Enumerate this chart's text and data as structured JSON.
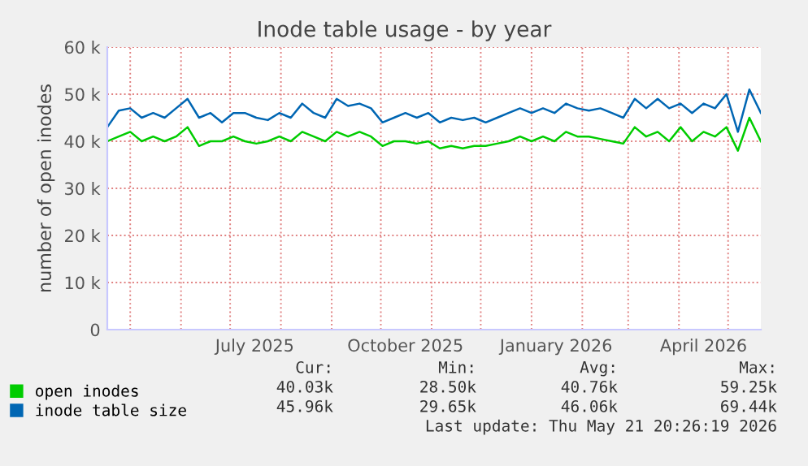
{
  "chart_data": {
    "type": "line",
    "title": "Inode table usage - by year",
    "ylabel": "number of open inodes",
    "x": [
      "2025-04-17",
      "2025-04-24",
      "2025-05-01",
      "2025-05-08",
      "2025-05-15",
      "2025-05-22",
      "2025-05-29",
      "2025-06-05",
      "2025-06-12",
      "2025-06-19",
      "2025-06-26",
      "2025-07-03",
      "2025-07-10",
      "2025-07-17",
      "2025-07-24",
      "2025-07-31",
      "2025-08-07",
      "2025-08-14",
      "2025-08-21",
      "2025-08-28",
      "2025-09-04",
      "2025-09-11",
      "2025-09-18",
      "2025-09-25",
      "2025-10-02",
      "2025-10-09",
      "2025-10-16",
      "2025-10-23",
      "2025-10-30",
      "2025-11-06",
      "2025-11-13",
      "2025-11-20",
      "2025-11-27",
      "2025-12-04",
      "2025-12-11",
      "2025-12-18",
      "2025-12-25",
      "2026-01-01",
      "2026-01-08",
      "2026-01-15",
      "2026-01-22",
      "2026-01-29",
      "2026-02-05",
      "2026-02-12",
      "2026-02-19",
      "2026-02-26",
      "2026-03-05",
      "2026-03-12",
      "2026-03-19",
      "2026-03-26",
      "2026-04-02",
      "2026-04-09",
      "2026-04-16",
      "2026-04-23",
      "2026-04-30",
      "2026-05-07",
      "2026-05-14",
      "2026-05-21"
    ],
    "series": [
      {
        "name": "open inodes",
        "color": "#00cc00",
        "values": [
          40000,
          41000,
          42000,
          40000,
          41000,
          40000,
          41000,
          43000,
          39000,
          40000,
          40000,
          41000,
          40000,
          39500,
          40000,
          41000,
          40000,
          42000,
          41000,
          40000,
          42000,
          41000,
          42000,
          41000,
          39000,
          40000,
          40000,
          39500,
          40000,
          38500,
          39000,
          38500,
          39000,
          39000,
          39500,
          40000,
          41000,
          40000,
          41000,
          40000,
          42000,
          41000,
          41000,
          40500,
          40000,
          39500,
          43000,
          41000,
          42000,
          40000,
          43000,
          40000,
          42000,
          41000,
          43000,
          38000,
          45000,
          40000
        ]
      },
      {
        "name": "inode table size",
        "color": "#0066b3",
        "values": [
          43000,
          46500,
          47000,
          45000,
          46000,
          45000,
          47000,
          49000,
          45000,
          46000,
          44000,
          46000,
          46000,
          45000,
          44500,
          46000,
          45000,
          48000,
          46000,
          45000,
          49000,
          47500,
          48000,
          47000,
          44000,
          45000,
          46000,
          45000,
          46000,
          44000,
          45000,
          44500,
          45000,
          44000,
          45000,
          46000,
          47000,
          46000,
          47000,
          46000,
          48000,
          47000,
          46500,
          47000,
          46000,
          45000,
          49000,
          47000,
          49000,
          47000,
          48000,
          46000,
          48000,
          47000,
          50000,
          42000,
          51000,
          46000
        ]
      }
    ],
    "ylim": [
      0,
      60000
    ],
    "yticks": [
      0,
      {
        "value": 10000,
        "label": "10 k"
      },
      {
        "value": 20000,
        "label": "20 k"
      },
      {
        "value": 30000,
        "label": "30 k"
      },
      {
        "value": 40000,
        "label": "40 k"
      },
      {
        "value": 50000,
        "label": "50 k"
      },
      {
        "value": 60000,
        "label": "60 k"
      }
    ],
    "xlim": [
      "2025-04-17",
      "2026-05-21"
    ],
    "xticks": [
      {
        "value": "2025-05-01",
        "label": null
      },
      {
        "value": "2025-06-01",
        "label": null
      },
      {
        "value": "2025-07-01",
        "label": null
      },
      {
        "value": "2025-07-16",
        "label": "July 2025"
      },
      {
        "value": "2025-08-01",
        "label": null
      },
      {
        "value": "2025-09-01",
        "label": null
      },
      {
        "value": "2025-10-01",
        "label": null
      },
      {
        "value": "2025-10-16",
        "label": "October 2025"
      },
      {
        "value": "2025-11-01",
        "label": null
      },
      {
        "value": "2025-12-01",
        "label": null
      },
      {
        "value": "2026-01-01",
        "label": null
      },
      {
        "value": "2026-01-16",
        "label": "January 2026"
      },
      {
        "value": "2026-02-01",
        "label": null
      },
      {
        "value": "2026-03-01",
        "label": null
      },
      {
        "value": "2026-04-01",
        "label": null
      },
      {
        "value": "2026-04-16",
        "label": "April 2026"
      },
      {
        "value": "2026-05-01",
        "label": null
      }
    ],
    "grid": true,
    "legend": "bottom left",
    "marker": "none",
    "line_style": "solid",
    "annotations": [
      "Cur:",
      "Min:",
      "Avg:",
      "Max:",
      "40.03k",
      "28.50k",
      "40.76k",
      "59.25k",
      "45.96k",
      "29.65k",
      "46.06k",
      "69.44k",
      "Last update: Thu May 21 20:26:19 2026"
    ]
  }
}
